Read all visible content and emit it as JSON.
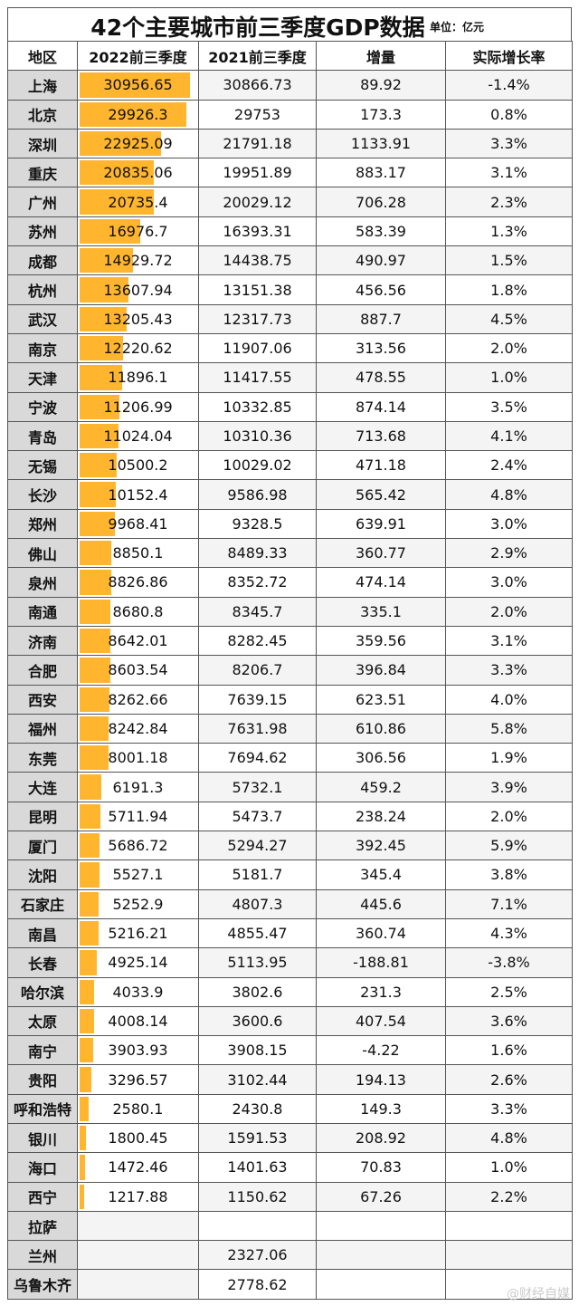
{
  "title": "42个主要城市前三季度GDP数据",
  "unit": "单位：亿元",
  "headers": [
    "地区",
    "2022前三季度",
    "2021前三季度",
    "增量",
    "实际增长率"
  ],
  "colors": {
    "bar": "#ffb62e",
    "region_bg": "#d9d9d9"
  },
  "watermark": "@财经自媒",
  "chart_data": {
    "type": "table",
    "title": "42个主要城市前三季度GDP数据",
    "unit": "单位：亿元",
    "bar_max": 30956.65,
    "columns": [
      "地区",
      "2022前三季度",
      "2021前三季度",
      "增量",
      "实际增长率"
    ],
    "rows": [
      [
        "上海",
        "30956.65",
        "30866.73",
        "89.92",
        "-1.4%"
      ],
      [
        "北京",
        "29926.3",
        "29753",
        "173.3",
        "0.8%"
      ],
      [
        "深圳",
        "22925.09",
        "21791.18",
        "1133.91",
        "3.3%"
      ],
      [
        "重庆",
        "20835.06",
        "19951.89",
        "883.17",
        "3.1%"
      ],
      [
        "广州",
        "20735.4",
        "20029.12",
        "706.28",
        "2.3%"
      ],
      [
        "苏州",
        "16976.7",
        "16393.31",
        "583.39",
        "1.3%"
      ],
      [
        "成都",
        "14929.72",
        "14438.75",
        "490.97",
        "1.5%"
      ],
      [
        "杭州",
        "13607.94",
        "13151.38",
        "456.56",
        "1.8%"
      ],
      [
        "武汉",
        "13205.43",
        "12317.73",
        "887.7",
        "4.5%"
      ],
      [
        "南京",
        "12220.62",
        "11907.06",
        "313.56",
        "2.0%"
      ],
      [
        "天津",
        "11896.1",
        "11417.55",
        "478.55",
        "1.0%"
      ],
      [
        "宁波",
        "11206.99",
        "10332.85",
        "874.14",
        "3.5%"
      ],
      [
        "青岛",
        "11024.04",
        "10310.36",
        "713.68",
        "4.1%"
      ],
      [
        "无锡",
        "10500.2",
        "10029.02",
        "471.18",
        "2.4%"
      ],
      [
        "长沙",
        "10152.4",
        "9586.98",
        "565.42",
        "4.8%"
      ],
      [
        "郑州",
        "9968.41",
        "9328.5",
        "639.91",
        "3.0%"
      ],
      [
        "佛山",
        "8850.1",
        "8489.33",
        "360.77",
        "2.9%"
      ],
      [
        "泉州",
        "8826.86",
        "8352.72",
        "474.14",
        "3.0%"
      ],
      [
        "南通",
        "8680.8",
        "8345.7",
        "335.1",
        "2.0%"
      ],
      [
        "济南",
        "8642.01",
        "8282.45",
        "359.56",
        "3.1%"
      ],
      [
        "合肥",
        "8603.54",
        "8206.7",
        "396.84",
        "3.3%"
      ],
      [
        "西安",
        "8262.66",
        "7639.15",
        "623.51",
        "4.0%"
      ],
      [
        "福州",
        "8242.84",
        "7631.98",
        "610.86",
        "5.8%"
      ],
      [
        "东莞",
        "8001.18",
        "7694.62",
        "306.56",
        "1.9%"
      ],
      [
        "大连",
        "6191.3",
        "5732.1",
        "459.2",
        "3.9%"
      ],
      [
        "昆明",
        "5711.94",
        "5473.7",
        "238.24",
        "2.0%"
      ],
      [
        "厦门",
        "5686.72",
        "5294.27",
        "392.45",
        "5.9%"
      ],
      [
        "沈阳",
        "5527.1",
        "5181.7",
        "345.4",
        "3.8%"
      ],
      [
        "石家庄",
        "5252.9",
        "4807.3",
        "445.6",
        "7.1%"
      ],
      [
        "南昌",
        "5216.21",
        "4855.47",
        "360.74",
        "4.3%"
      ],
      [
        "长春",
        "4925.14",
        "5113.95",
        "-188.81",
        "-3.8%"
      ],
      [
        "哈尔滨",
        "4033.9",
        "3802.6",
        "231.3",
        "2.5%"
      ],
      [
        "太原",
        "4008.14",
        "3600.6",
        "407.54",
        "3.6%"
      ],
      [
        "南宁",
        "3903.93",
        "3908.15",
        "-4.22",
        "1.6%"
      ],
      [
        "贵阳",
        "3296.57",
        "3102.44",
        "194.13",
        "2.6%"
      ],
      [
        "呼和浩特",
        "2580.1",
        "2430.8",
        "149.3",
        "3.3%"
      ],
      [
        "银川",
        "1800.45",
        "1591.53",
        "208.92",
        "4.8%"
      ],
      [
        "海口",
        "1472.46",
        "1401.63",
        "70.83",
        "1.0%"
      ],
      [
        "西宁",
        "1217.88",
        "1150.62",
        "67.26",
        "2.2%"
      ],
      [
        "拉萨",
        "",
        "",
        "",
        ""
      ],
      [
        "兰州",
        "",
        "2327.06",
        "",
        ""
      ],
      [
        "乌鲁木齐",
        "",
        "2778.62",
        "",
        ""
      ]
    ]
  }
}
